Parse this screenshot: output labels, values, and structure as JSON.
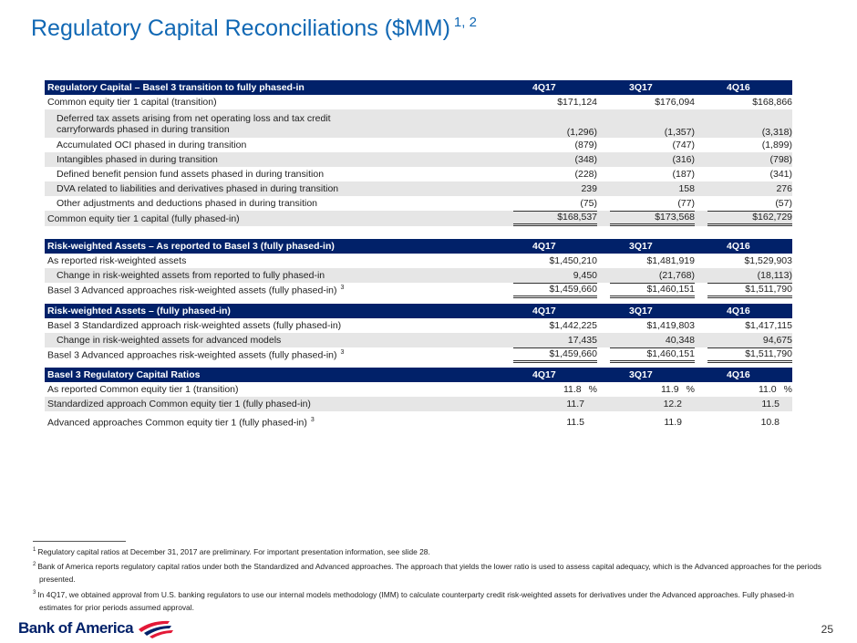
{
  "header": {
    "title": "Regulatory Capital Reconciliations ($MM)",
    "superscript": "1, 2"
  },
  "tables": [
    {
      "title": "Regulatory Capital – Basel 3 transition to fully phased-in",
      "columns": [
        "4Q17",
        "3Q17",
        "4Q16"
      ],
      "rows": [
        {
          "label": "Common equity tier 1 capital (transition)",
          "values": [
            "$171,124",
            "$176,094",
            "$168,866"
          ]
        },
        {
          "label": [
            "Deferred tax assets arising from net operating loss and tax credit",
            "carryforwards phased in during transition"
          ],
          "values": [
            "(1,296)",
            "(1,357)",
            "(3,318)"
          ]
        },
        {
          "label": "Accumulated OCI phased in during transition",
          "values": [
            "(879)",
            "(747)",
            "(1,899)"
          ]
        },
        {
          "label": "Intangibles phased in during transition",
          "values": [
            "(348)",
            "(316)",
            "(798)"
          ]
        },
        {
          "label": "Defined benefit pension fund assets phased in during transition",
          "values": [
            "(228)",
            "(187)",
            "(341)"
          ]
        },
        {
          "label": "DVA related to liabilities and derivatives phased in during transition",
          "values": [
            "239",
            "158",
            "276"
          ]
        },
        {
          "label": "Other adjustments and deductions phased in during transition",
          "values": [
            "(75)",
            "(77)",
            "(57)"
          ]
        },
        {
          "label": "Common equity tier 1 capital (fully phased-in)",
          "values": [
            "$168,537",
            "$173,568",
            "$162,729"
          ]
        }
      ]
    },
    {
      "title": "Risk-weighted Assets – As reported to Basel 3 (fully phased-in)",
      "columns": [
        "4Q17",
        "3Q17",
        "4Q16"
      ],
      "rows": [
        {
          "label": "As reported risk-weighted assets",
          "values": [
            "$1,450,210",
            "$1,481,919",
            "$1,529,903"
          ]
        },
        {
          "label": "Change in risk-weighted assets from reported to fully phased-in",
          "values": [
            "9,450",
            "(21,768)",
            "(18,113)"
          ]
        },
        {
          "label": "Basel 3 Advanced approaches risk-weighted assets (fully phased-in)",
          "sup": "3",
          "values": [
            "$1,459,660",
            "$1,460,151",
            "$1,511,790"
          ]
        }
      ]
    },
    {
      "title": "Risk-weighted Assets – (fully phased-in)",
      "columns": [
        "4Q17",
        "3Q17",
        "4Q16"
      ],
      "rows": [
        {
          "label": "Basel 3 Standardized approach risk-weighted assets (fully phased-in)",
          "values": [
            "$1,442,225",
            "$1,419,803",
            "$1,417,115"
          ]
        },
        {
          "label": "Change in risk-weighted assets for advanced models",
          "values": [
            "17,435",
            "40,348",
            "94,675"
          ]
        },
        {
          "label": "Basel 3 Advanced approaches risk-weighted assets (fully phased-in)",
          "sup": "3",
          "values": [
            "$1,459,660",
            "$1,460,151",
            "$1,511,790"
          ]
        }
      ]
    },
    {
      "title": "Basel 3 Regulatory Capital Ratios",
      "columns": [
        "4Q17",
        "3Q17",
        "4Q16"
      ],
      "rows": [
        {
          "label": "As reported Common equity tier 1 (transition)",
          "values": [
            "11.8",
            "11.9",
            "11.0"
          ],
          "unit": "%"
        },
        {
          "label": "Standardized approach Common equity tier 1 (fully phased-in)",
          "values": [
            "11.7",
            "12.2",
            "11.5"
          ]
        },
        {
          "label": "Advanced approaches Common equity tier 1 (fully phased-in)",
          "sup": "3",
          "values": [
            "11.5",
            "11.9",
            "10.8"
          ]
        }
      ]
    }
  ],
  "footnotes": [
    {
      "mark": "1",
      "text": "Regulatory capital ratios at December 31, 2017 are preliminary. For important presentation information, see slide 28."
    },
    {
      "mark": "2",
      "text": "Bank of America reports regulatory capital ratios under both the Standardized and Advanced approaches. The approach that yields the lower ratio is used to assess capital adequacy, which is the Advanced approaches for the periods presented."
    },
    {
      "mark": "3",
      "text": "In 4Q17, we obtained approval from U.S. banking regulators to use our internal models methodology (IMM) to calculate counterparty credit risk-weighted assets for derivatives under the Advanced approaches. Fully phased-in estimates for prior periods assumed approval."
    }
  ],
  "footer": {
    "logo": "Bank of America",
    "page": "25"
  }
}
